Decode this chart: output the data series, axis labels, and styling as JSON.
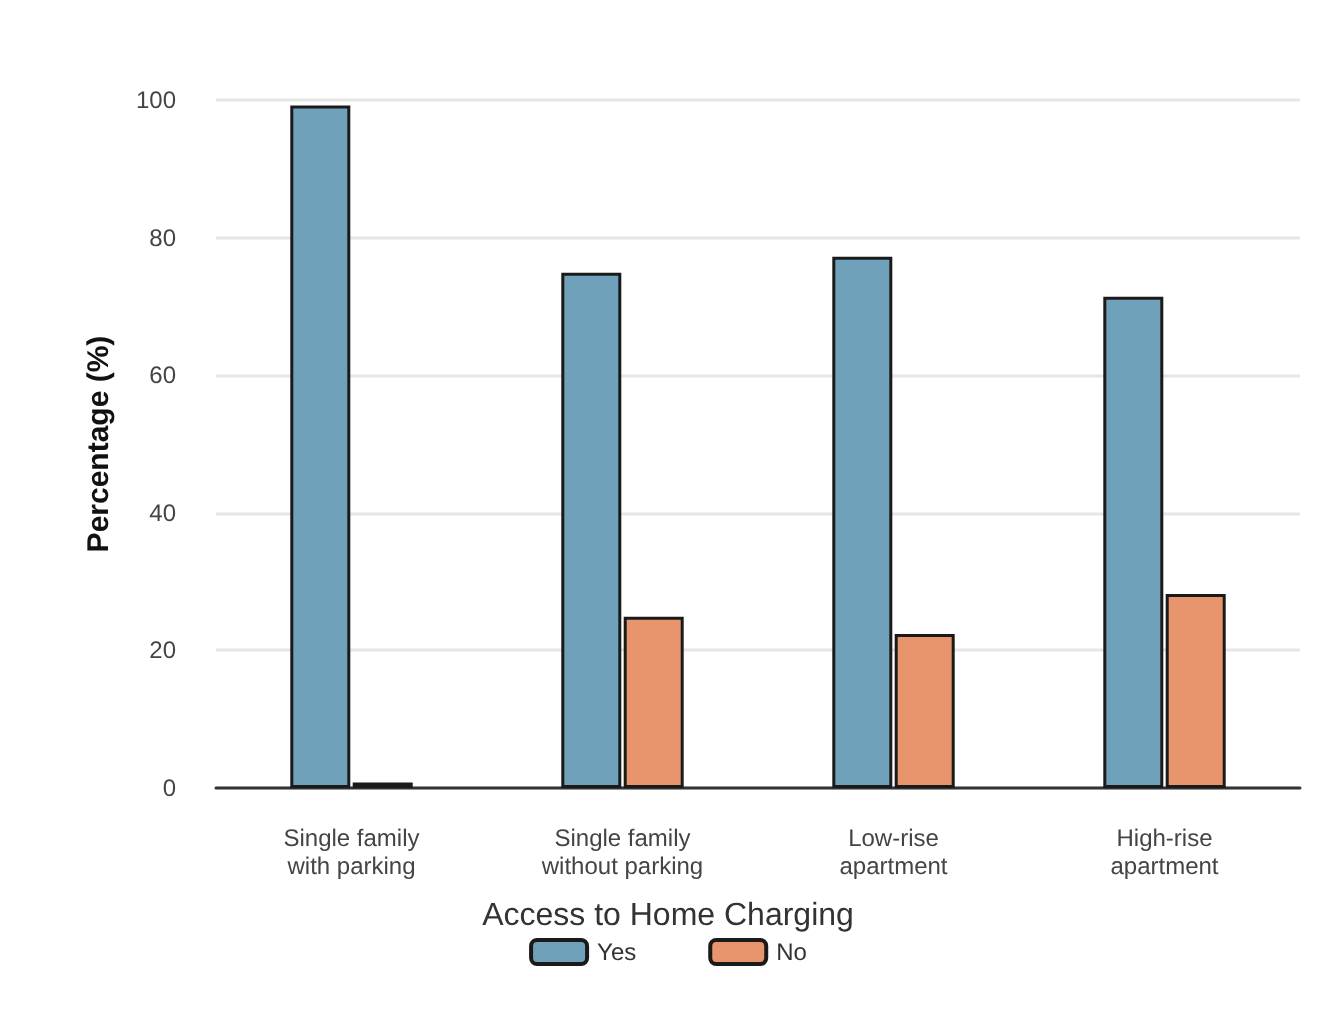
{
  "chart_data": {
    "type": "bar",
    "ylabel": "Percentage (%)",
    "legend_title": "Access to Home Charging",
    "categories": [
      "Single family\nwith parking",
      "Single family\nwithout parking",
      "Low-rise\napartment",
      "High-rise\napartment"
    ],
    "series": [
      {
        "name": "Yes",
        "color": "#6fa1ba",
        "values": [
          99.2,
          74.9,
          77.2,
          71.4
        ]
      },
      {
        "name": "No",
        "color": "#e8956d",
        "values": [
          0.8,
          24.9,
          22.4,
          28.2
        ]
      }
    ],
    "ylim": [
      0,
      100
    ],
    "yticks": [
      0,
      20,
      40,
      60,
      80,
      100
    ],
    "grid": "y",
    "legend": "bottom"
  }
}
